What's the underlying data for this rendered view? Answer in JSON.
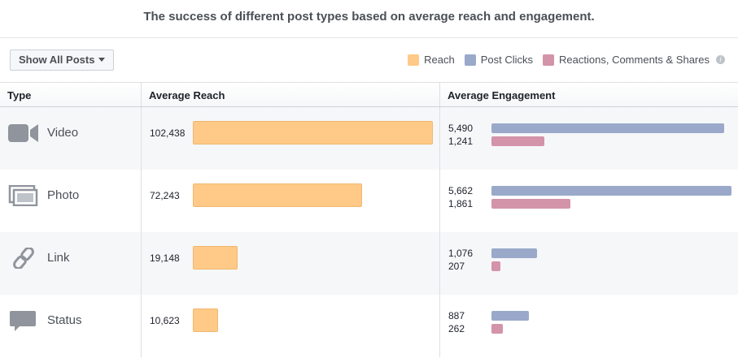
{
  "title": "The success of different post types based on average reach and engagement.",
  "filter_button": "Show All Posts",
  "legend": [
    {
      "label": "Reach",
      "color": "#ffc987"
    },
    {
      "label": "Post Clicks",
      "color": "#9aa9c9"
    },
    {
      "label": "Reactions, Comments & Shares",
      "color": "#d393a8"
    }
  ],
  "info_icon": "i",
  "headers": {
    "type": "Type",
    "reach": "Average Reach",
    "engagement": "Average Engagement"
  },
  "rows": [
    {
      "type": "Video",
      "icon": "video-camera",
      "reach": "102,438",
      "reach_value": 102438,
      "clicks": "5,490",
      "clicks_value": 5490,
      "reactions": "1,241",
      "reactions_value": 1241
    },
    {
      "type": "Photo",
      "icon": "photo-stack",
      "reach": "72,243",
      "reach_value": 72243,
      "clicks": "5,662",
      "clicks_value": 5662,
      "reactions": "1,861",
      "reactions_value": 1861
    },
    {
      "type": "Link",
      "icon": "link",
      "reach": "19,148",
      "reach_value": 19148,
      "clicks": "1,076",
      "clicks_value": 1076,
      "reactions": "207",
      "reactions_value": 207
    },
    {
      "type": "Status",
      "icon": "speech-bubble",
      "reach": "10,623",
      "reach_value": 10623,
      "clicks": "887",
      "clicks_value": 887,
      "reactions": "262",
      "reactions_value": 262
    }
  ]
}
